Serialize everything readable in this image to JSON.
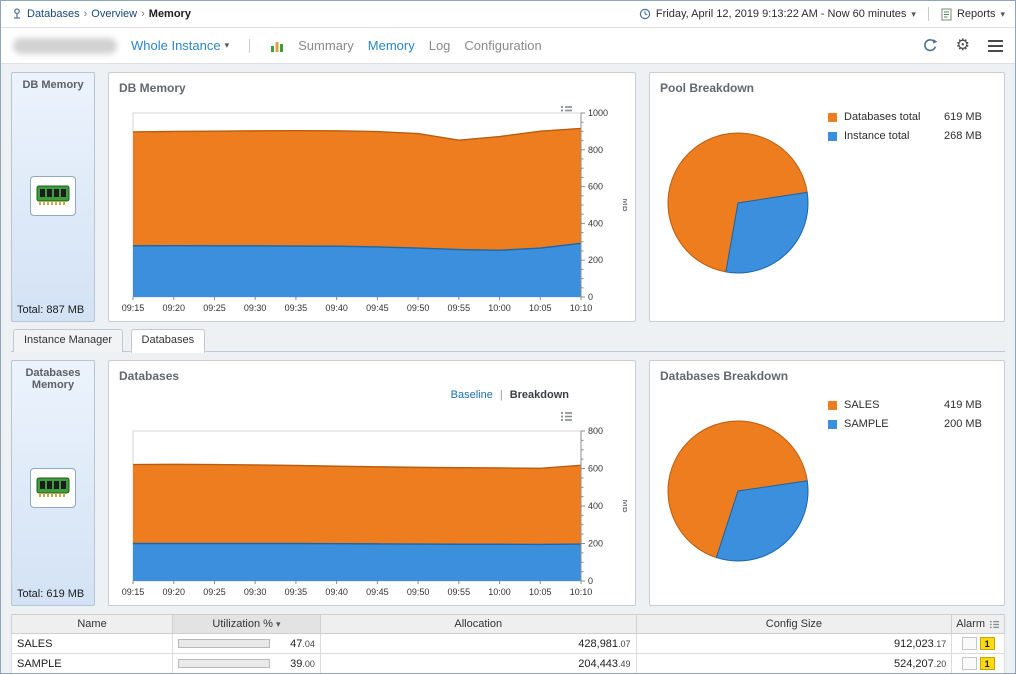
{
  "icons": {
    "caret_down": "▾",
    "breadcrumb_sep": "›",
    "gear": "⚙",
    "toggle_sep": "|"
  },
  "breadcrumb": {
    "items": [
      "Databases",
      "Overview"
    ],
    "current": "Memory"
  },
  "topbar": {
    "time_label": "Friday, April 12, 2019 9:13:22 AM - Now 60 minutes",
    "reports_label": "Reports"
  },
  "toolbar": {
    "scope_label": "Whole Instance",
    "nav": [
      {
        "label": "Summary"
      },
      {
        "label": "Memory"
      },
      {
        "label": "Log"
      },
      {
        "label": "Configuration"
      }
    ]
  },
  "db_memory_panel": {
    "title": "DB Memory",
    "total": "Total: 887 MB"
  },
  "db_memory_chart": {
    "title": "DB Memory"
  },
  "pool_breakdown": {
    "title": "Pool Breakdown",
    "legend": [
      {
        "label": "Databases total",
        "value": "619 MB",
        "color": "#ee7d1f"
      },
      {
        "label": "Instance total",
        "value": "268 MB",
        "color": "#3b8fdd"
      }
    ]
  },
  "section_tabs": [
    {
      "label": "Instance Manager"
    },
    {
      "label": "Databases"
    }
  ],
  "databases_memory_panel": {
    "title": "Databases Memory",
    "total": "Total: 619 MB"
  },
  "databases_chart": {
    "title": "Databases",
    "baseline_label": "Baseline",
    "breakdown_label": "Breakdown"
  },
  "databases_breakdown": {
    "title": "Databases Breakdown",
    "legend": [
      {
        "label": "SALES",
        "value": "419 MB",
        "color": "#ee7d1f"
      },
      {
        "label": "SAMPLE",
        "value": "200 MB",
        "color": "#3b8fdd"
      }
    ]
  },
  "table": {
    "columns": {
      "name": "Name",
      "utilization": "Utilization %",
      "allocation": "Allocation",
      "config_size": "Config Size",
      "alarm": "Alarm"
    },
    "rows": [
      {
        "name": "SALES",
        "util_pct": 47.04,
        "util_int": "47",
        "util_dec": ".04",
        "alloc_int": "428,981",
        "alloc_dec": ".07",
        "config_int": "912,023",
        "config_dec": ".17",
        "warn_count": "1"
      },
      {
        "name": "SAMPLE",
        "util_pct": 39.0,
        "util_int": "39",
        "util_dec": ".00",
        "alloc_int": "204,443",
        "alloc_dec": ".49",
        "config_int": "524,207",
        "config_dec": ".20",
        "warn_count": "1"
      }
    ]
  },
  "chart_data": [
    {
      "id": "db-memory-area",
      "type": "area",
      "stacked": true,
      "title": "DB Memory",
      "ylabel": "MB",
      "ylim": [
        0,
        1000
      ],
      "yticks": [
        0,
        200,
        400,
        600,
        800,
        1000
      ],
      "x": [
        "09:15",
        "09:20",
        "09:25",
        "09:30",
        "09:35",
        "09:40",
        "09:45",
        "09:50",
        "09:55",
        "10:00",
        "10:05",
        "10:10"
      ],
      "series": [
        {
          "name": "Instance total",
          "color": "#3b8fdd",
          "edge": "#1a66a8",
          "values": [
            278,
            279,
            278,
            278,
            277,
            276,
            272,
            266,
            258,
            254,
            266,
            292
          ]
        },
        {
          "name": "Databases total",
          "color": "#ee7d1f",
          "edge": "#b85c0e",
          "values": [
            619,
            621,
            623,
            625,
            627,
            627,
            627,
            622,
            594,
            618,
            635,
            624
          ]
        }
      ]
    },
    {
      "id": "pool-pie",
      "type": "pie",
      "title": "Pool Breakdown",
      "rotation": 100,
      "slices": [
        {
          "name": "Databases total",
          "value": 619,
          "color": "#ee7d1f",
          "edge": "#b85c0e"
        },
        {
          "name": "Instance total",
          "value": 268,
          "color": "#3b8fdd",
          "edge": "#1a66a8"
        }
      ]
    },
    {
      "id": "databases-area",
      "type": "area",
      "stacked": true,
      "title": "Databases",
      "ylabel": "MB",
      "ylim": [
        0,
        800
      ],
      "yticks": [
        0,
        200,
        400,
        600,
        800
      ],
      "x": [
        "09:15",
        "09:20",
        "09:25",
        "09:30",
        "09:35",
        "09:40",
        "09:45",
        "09:50",
        "09:55",
        "10:00",
        "10:05",
        "10:10"
      ],
      "series": [
        {
          "name": "SAMPLE",
          "color": "#3b8fdd",
          "edge": "#1a66a8",
          "values": [
            200,
            200,
            200,
            200,
            200,
            199,
            198,
            197,
            196,
            196,
            195,
            197
          ]
        },
        {
          "name": "SALES",
          "color": "#ee7d1f",
          "edge": "#b85c0e",
          "values": [
            421,
            422,
            421,
            419,
            416,
            413,
            411,
            409,
            408,
            407,
            406,
            420
          ]
        }
      ]
    },
    {
      "id": "databases-pie",
      "type": "pie",
      "title": "Databases Breakdown",
      "rotation": 108,
      "slices": [
        {
          "name": "SALES",
          "value": 419,
          "color": "#ee7d1f",
          "edge": "#b85c0e"
        },
        {
          "name": "SAMPLE",
          "value": 200,
          "color": "#3b8fdd",
          "edge": "#1a66a8"
        }
      ]
    }
  ]
}
